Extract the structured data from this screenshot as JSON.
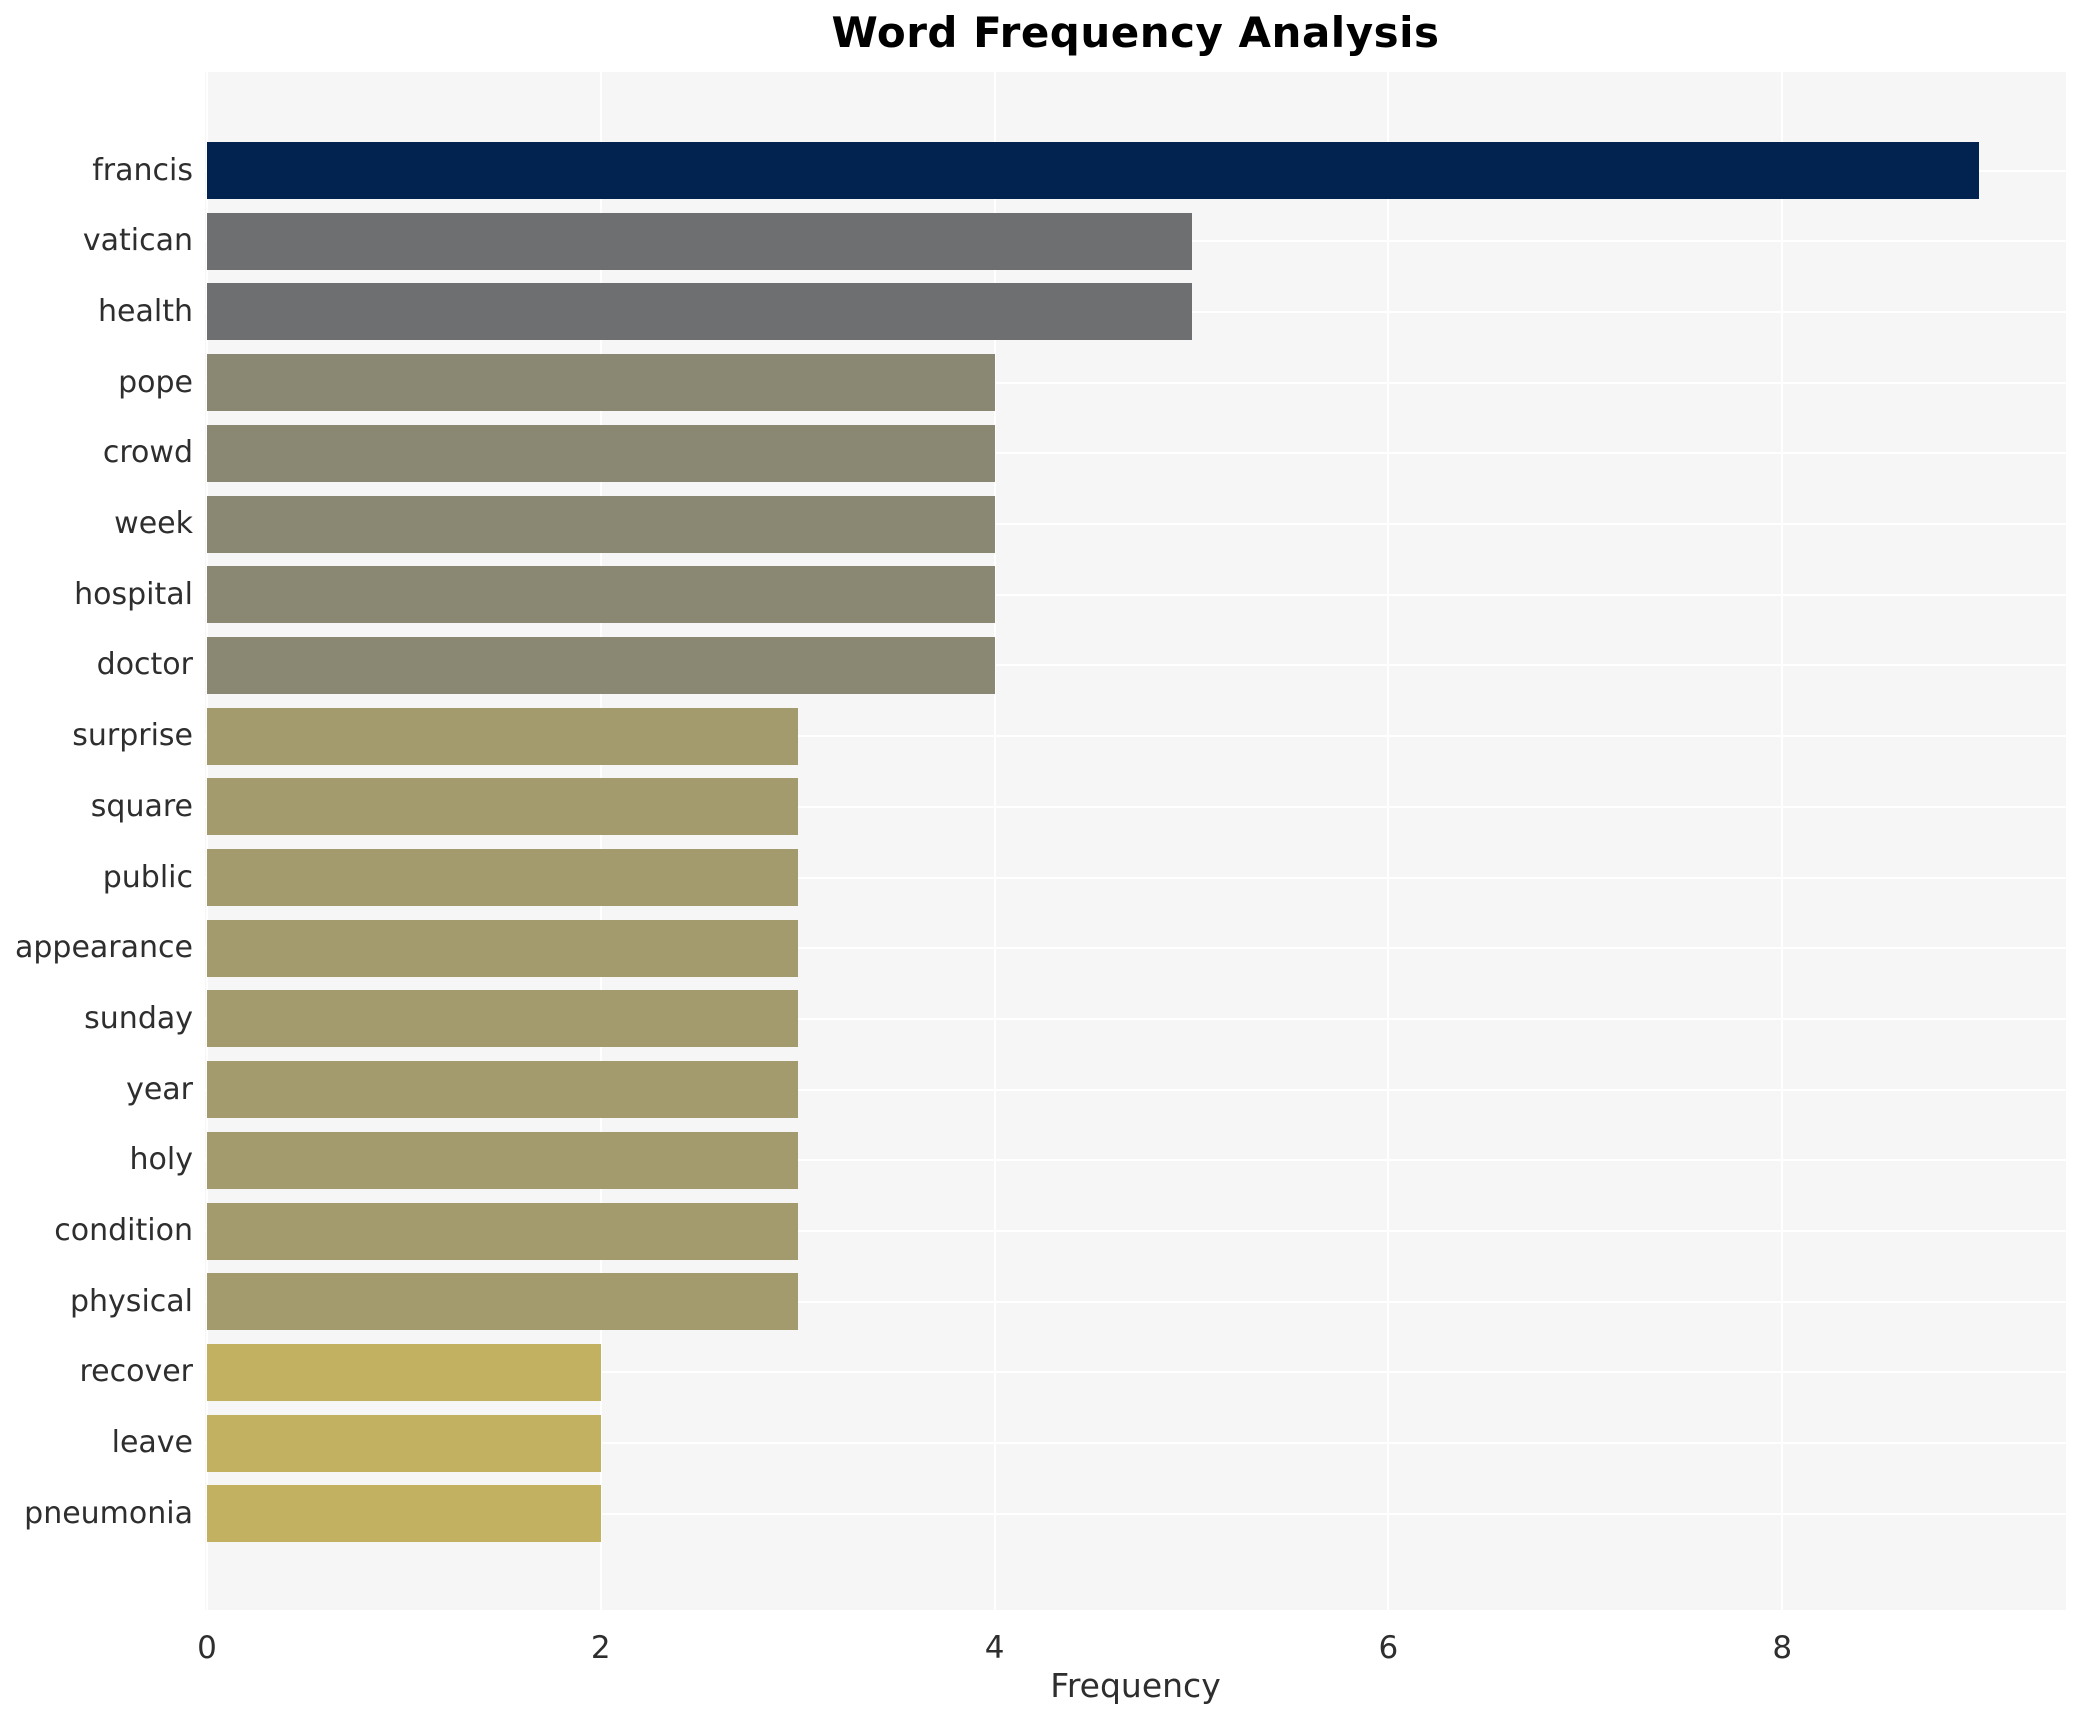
{
  "title": "Word Frequency Analysis",
  "chart_data": {
    "type": "bar",
    "orientation": "horizontal",
    "title": "Word Frequency Analysis",
    "xlabel": "Frequency",
    "ylabel": "",
    "categories": [
      "francis",
      "vatican",
      "health",
      "pope",
      "crowd",
      "week",
      "hospital",
      "doctor",
      "surprise",
      "square",
      "public",
      "appearance",
      "sunday",
      "year",
      "holy",
      "condition",
      "physical",
      "recover",
      "leave",
      "pneumonia"
    ],
    "values": [
      9,
      5,
      5,
      4,
      4,
      4,
      4,
      4,
      3,
      3,
      3,
      3,
      3,
      3,
      3,
      3,
      3,
      2,
      2,
      2
    ],
    "bar_colors": [
      "#02224f",
      "#6e6f71",
      "#6e6f71",
      "#8a8872",
      "#8a8872",
      "#8a8872",
      "#8a8872",
      "#8a8872",
      "#a39a6d",
      "#a39a6d",
      "#a39a6d",
      "#a39a6d",
      "#a39a6d",
      "#a39a6d",
      "#a39a6d",
      "#a39a6d",
      "#a39a6d",
      "#c2b161",
      "#c2b161",
      "#c2b161"
    ],
    "xticks": [
      0,
      2,
      4,
      6,
      8
    ],
    "xlim": [
      0,
      9.45
    ],
    "grid": true,
    "legend": false,
    "plot_bg_color": "#f6f6f7",
    "grid_color": "#ffffff",
    "text_color": "#2e2e2e",
    "title_color": "#000000"
  }
}
